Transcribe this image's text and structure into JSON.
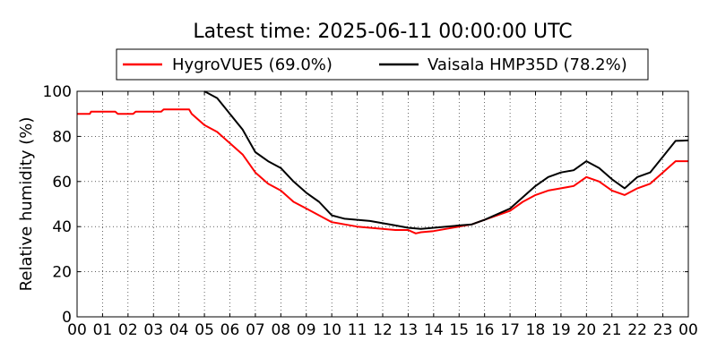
{
  "chart_data": {
    "type": "line",
    "title": "Latest time: 2025-06-11 00:00:00 UTC",
    "xlabel": "",
    "ylabel": "Relative humidity (%)",
    "xlim": [
      0,
      24
    ],
    "ylim": [
      0,
      100
    ],
    "x_tick_labels": [
      "00",
      "01",
      "02",
      "03",
      "04",
      "05",
      "06",
      "07",
      "08",
      "09",
      "10",
      "11",
      "12",
      "13",
      "14",
      "15",
      "16",
      "17",
      "18",
      "19",
      "20",
      "21",
      "22",
      "23",
      "00"
    ],
    "y_ticks": [
      0,
      20,
      40,
      60,
      80,
      100
    ],
    "grid": true,
    "legend_position": "top",
    "series": [
      {
        "name": "HygroVUE5 (69.0%)",
        "color": "#ff0000",
        "x": [
          0,
          0.5,
          0.55,
          1.5,
          1.6,
          2.2,
          2.3,
          3.3,
          3.4,
          4.4,
          4.5,
          5.0,
          5.5,
          6.0,
          6.5,
          7.0,
          7.5,
          8.0,
          8.5,
          9.0,
          9.5,
          10.0,
          10.5,
          11.0,
          11.5,
          12.0,
          12.5,
          13.0,
          13.3,
          13.5,
          14.0,
          14.5,
          15.0,
          15.5,
          16.0,
          16.5,
          17.0,
          17.5,
          18.0,
          18.5,
          19.0,
          19.5,
          20.0,
          20.5,
          21.0,
          21.5,
          22.0,
          22.5,
          23.0,
          23.5,
          24.0
        ],
        "values": [
          90,
          90,
          91,
          91,
          90,
          90,
          91,
          91,
          92,
          92,
          90,
          85,
          82,
          77,
          72,
          64,
          59,
          56,
          51,
          48,
          45,
          42,
          41,
          40,
          39.5,
          39,
          38.5,
          38.5,
          37,
          37.5,
          38,
          39,
          40,
          41,
          43,
          45,
          47,
          51,
          54,
          56,
          57,
          58,
          62,
          60,
          56,
          54,
          57,
          59,
          64,
          69,
          69
        ]
      },
      {
        "name": "Vaisala HMP35D (78.2%)",
        "color": "#000000",
        "x": [
          5.0,
          5.5,
          6.0,
          6.5,
          7.0,
          7.5,
          8.0,
          8.5,
          9.0,
          9.5,
          10.0,
          10.5,
          11.0,
          11.5,
          12.0,
          12.5,
          13.0,
          13.5,
          14.0,
          14.5,
          15.0,
          15.5,
          16.0,
          16.5,
          17.0,
          17.5,
          18.0,
          18.5,
          19.0,
          19.5,
          20.0,
          20.5,
          21.0,
          21.5,
          22.0,
          22.5,
          23.0,
          23.5,
          24.0
        ],
        "values": [
          100,
          97,
          90,
          83,
          73,
          69,
          66,
          60,
          55,
          51,
          45,
          43.5,
          43,
          42.5,
          41.5,
          40.5,
          39.5,
          39,
          39.5,
          40,
          40.5,
          41,
          43,
          45.5,
          48,
          53,
          58,
          62,
          64,
          65,
          69,
          66,
          61,
          57,
          62,
          64,
          71,
          78,
          78.2
        ]
      }
    ]
  }
}
